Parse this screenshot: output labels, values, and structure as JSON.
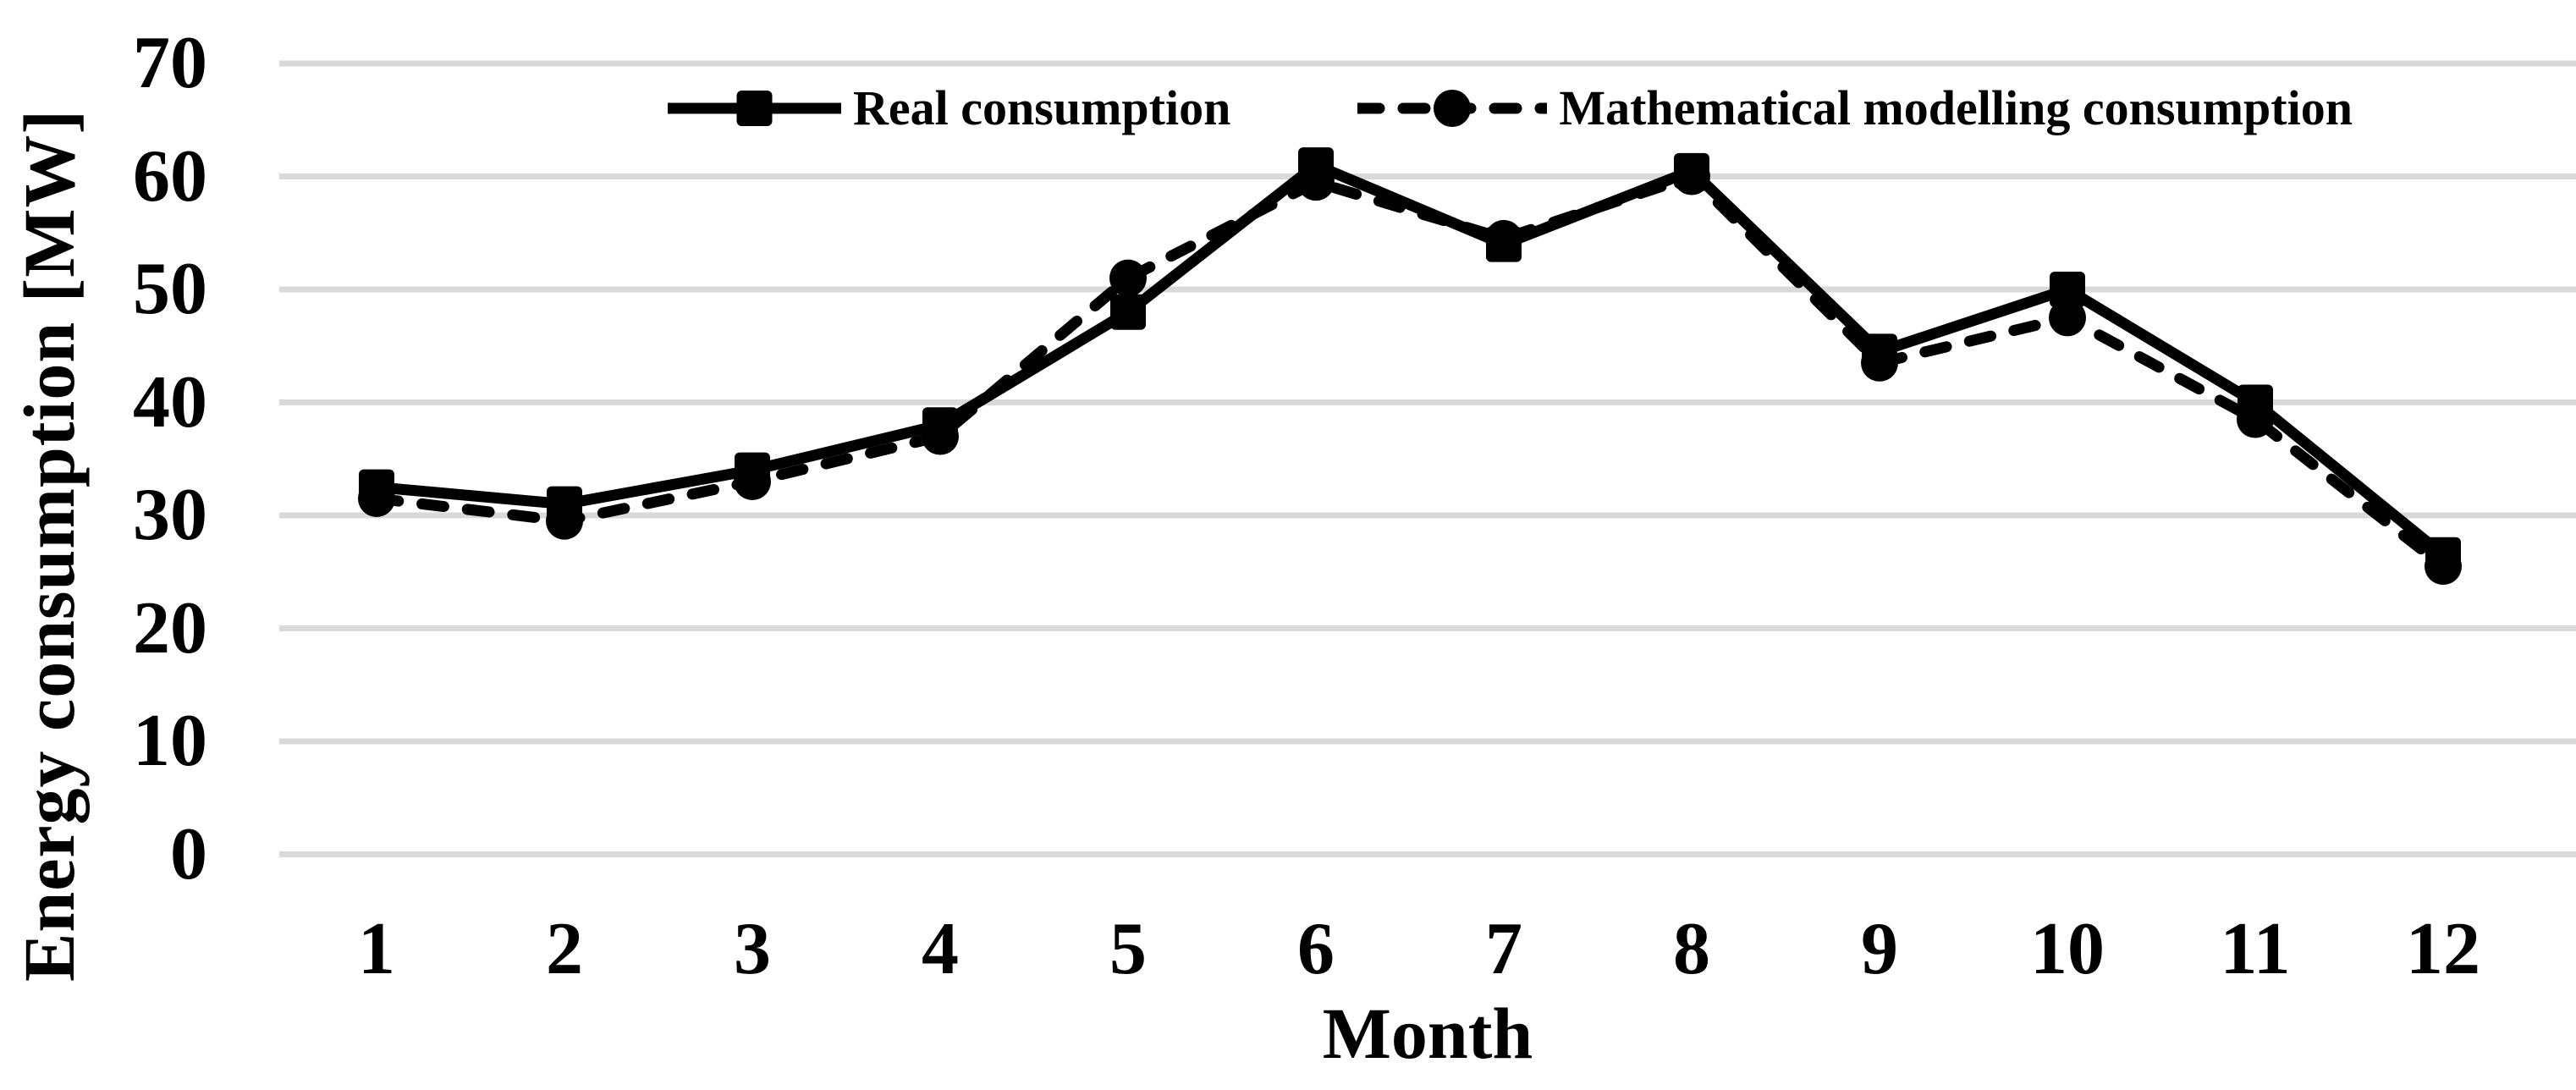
{
  "chart_data": {
    "type": "line",
    "title": "",
    "xlabel": "Month",
    "ylabel": "Energy consumption [MW]",
    "x_categories": [
      "1",
      "2",
      "3",
      "4",
      "5",
      "6",
      "7",
      "8",
      "9",
      "10",
      "11",
      "12"
    ],
    "y_ticks": [
      "70",
      "60",
      "50",
      "40",
      "30",
      "20",
      "10",
      "0"
    ],
    "ylim": [
      0,
      70
    ],
    "grid": "horizontal-only",
    "legend_position": "top",
    "series": [
      {
        "name": "Real consumption",
        "marker": "square",
        "line_style": "solid",
        "color": "#000000",
        "values": [
          32.5,
          31,
          34,
          38,
          48,
          61,
          54,
          60.5,
          44.5,
          50,
          40,
          26.5
        ]
      },
      {
        "name": "Mathematical modelling consumption",
        "marker": "circle",
        "line_style": "dashed",
        "color": "#000000",
        "values": [
          31.5,
          29.5,
          33,
          37,
          51,
          59.5,
          54.5,
          60,
          43.5,
          47.5,
          38.5,
          25.5
        ]
      }
    ],
    "colors": {
      "grid": "#d9d9d9",
      "background": "#ffffff",
      "series": "#000000"
    }
  }
}
